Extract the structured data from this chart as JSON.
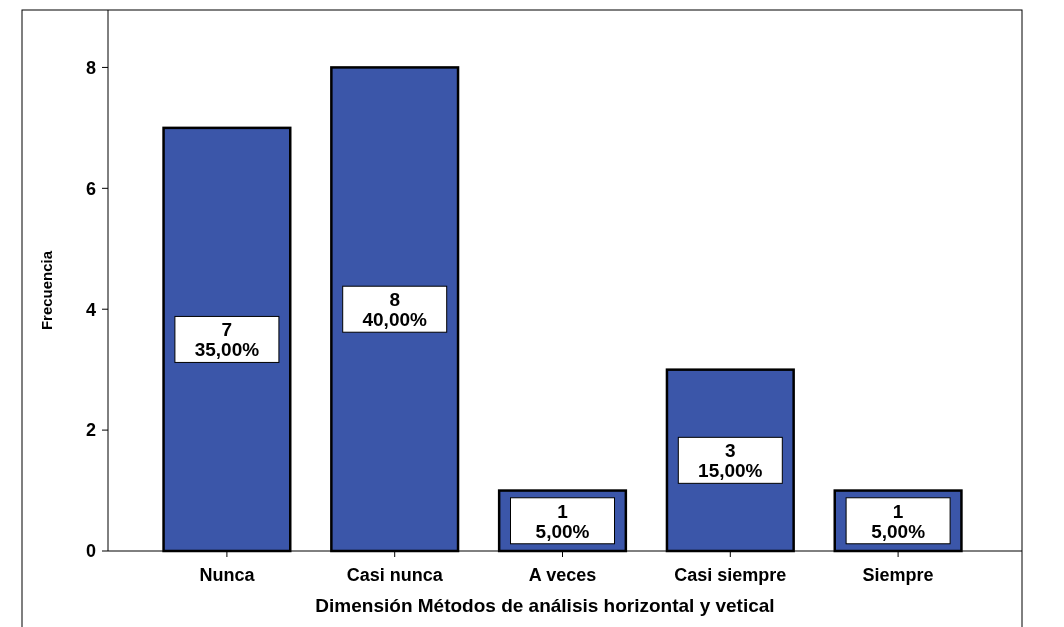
{
  "chart_data": {
    "type": "bar",
    "xlabel": "Dimensión Métodos de análisis horizontal y vetical",
    "ylabel": "Frecuencia",
    "categories": [
      "Nunca",
      "Casi nunca",
      "A veces",
      "Casi siempre",
      "Siempre"
    ],
    "values": [
      7,
      8,
      1,
      3,
      1
    ],
    "value_labels": [
      "7\n35,00%",
      "8\n40,00%",
      "1\n5,00%",
      "3\n15,00%",
      "1\n5,00%"
    ],
    "color": "#3b56a9",
    "ylim": [
      0,
      8.95
    ],
    "yticks": [
      0,
      2,
      4,
      6,
      8
    ],
    "grid": false
  }
}
